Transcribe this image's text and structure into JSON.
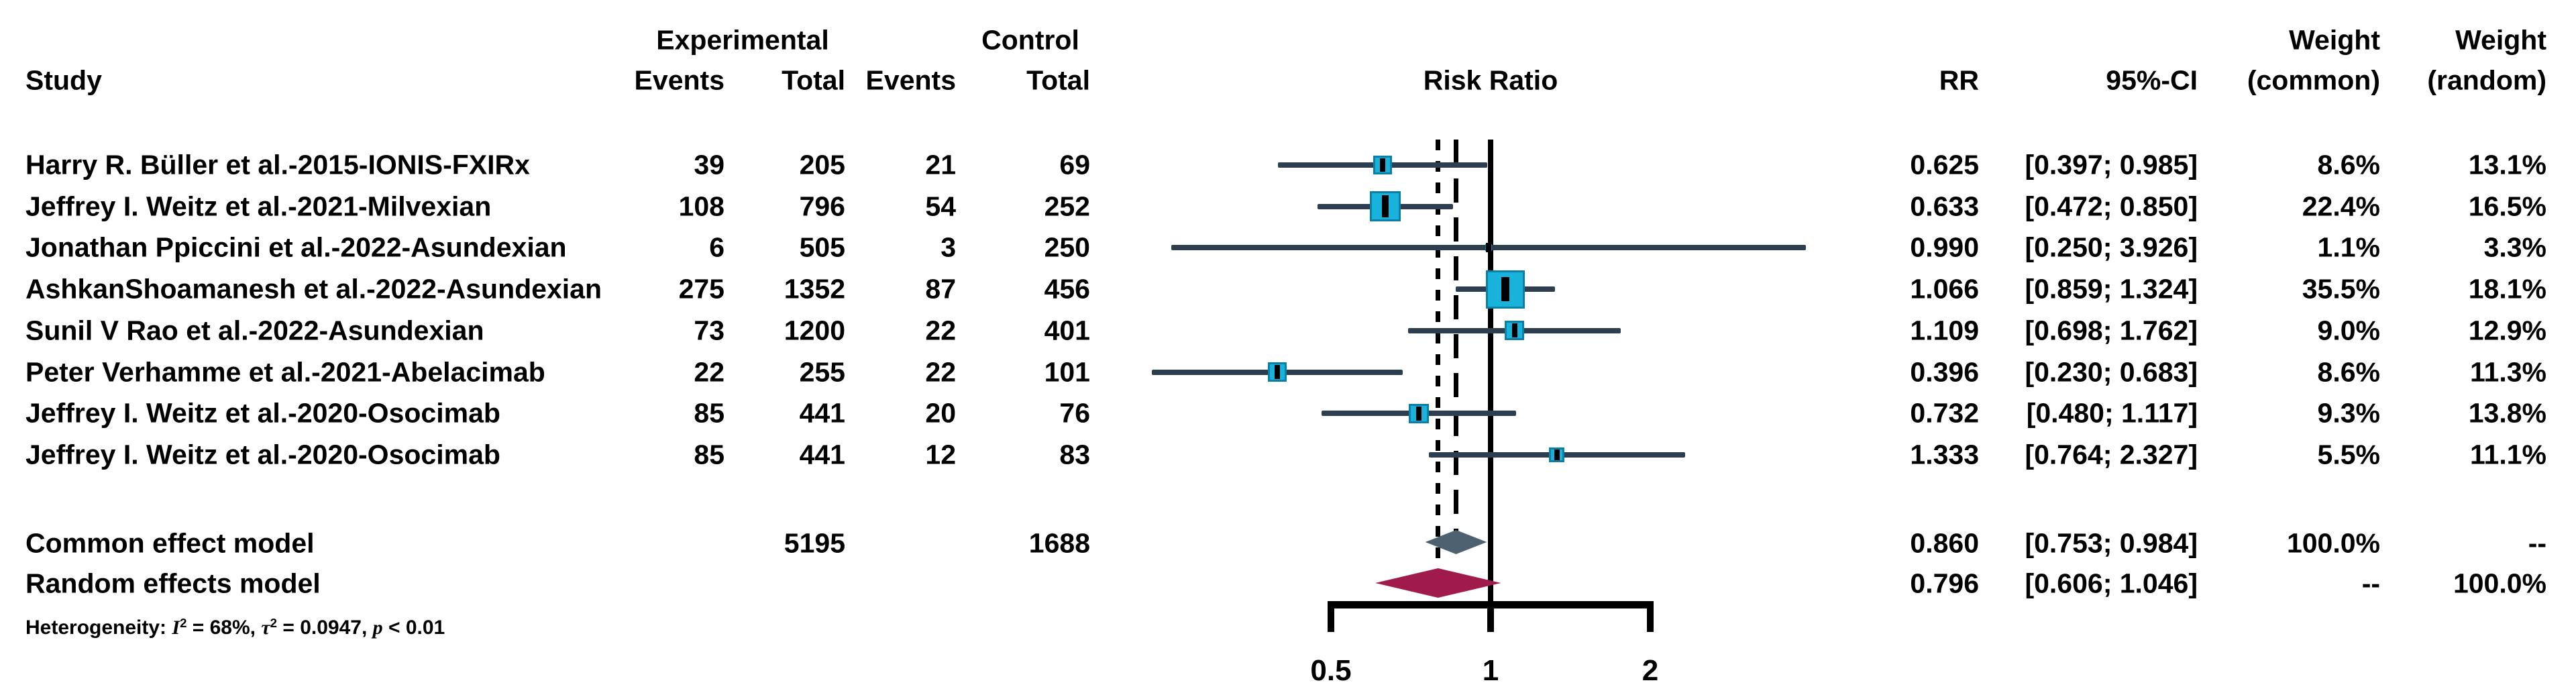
{
  "figure": {
    "columns": {
      "study": "Study",
      "experimental": "Experimental",
      "control": "Control",
      "events": "Events",
      "total": "Total",
      "risk_ratio": "Risk Ratio",
      "rr": "RR",
      "ci": "95%-CI",
      "weight_line1": "Weight",
      "weight_common_line2": "(common)",
      "weight_random_line2": "(random)"
    },
    "heterogeneity": {
      "prefix": "Heterogeneity: ",
      "i": "I",
      "sup1": "2",
      "seg1": " = 68%, ",
      "tau": "τ",
      "sup2": "2",
      "seg2": " = 0.0947, ",
      "p": "p",
      "seg3": " < 0.01"
    }
  },
  "chart_data": {
    "type": "forest",
    "x_axis": {
      "scale": "log",
      "ticks": [
        0.5,
        1,
        2
      ],
      "tick_labels": [
        "0.5",
        "1",
        "2"
      ],
      "reference_line": 1
    },
    "studies": [
      {
        "study": "Harry R. Büller et al.-2015-IONIS-FXIRx",
        "exp_events": 39,
        "exp_total": 205,
        "ctrl_events": 21,
        "ctrl_total": 69,
        "rr": 0.625,
        "ci_low": 0.397,
        "ci_high": 0.985,
        "rr_label": "0.625",
        "ci_label": "[0.397; 0.985]",
        "weight_common": "8.6%",
        "weight_random": "13.1%"
      },
      {
        "study": "Jeffrey I. Weitz et al.-2021-Milvexian",
        "exp_events": 108,
        "exp_total": 796,
        "ctrl_events": 54,
        "ctrl_total": 252,
        "rr": 0.633,
        "ci_low": 0.472,
        "ci_high": 0.85,
        "rr_label": "0.633",
        "ci_label": "[0.472; 0.850]",
        "weight_common": "22.4%",
        "weight_random": "16.5%"
      },
      {
        "study": "Jonathan Ppiccini et al.-2022-Asundexian",
        "exp_events": 6,
        "exp_total": 505,
        "ctrl_events": 3,
        "ctrl_total": 250,
        "rr": 0.99,
        "ci_low": 0.25,
        "ci_high": 3.926,
        "rr_label": "0.990",
        "ci_label": "[0.250; 3.926]",
        "weight_common": "1.1%",
        "weight_random": "3.3%"
      },
      {
        "study": "AshkanShoamanesh et al.-2022-Asundexian",
        "exp_events": 275,
        "exp_total": 1352,
        "ctrl_events": 87,
        "ctrl_total": 456,
        "rr": 1.066,
        "ci_low": 0.859,
        "ci_high": 1.324,
        "rr_label": "1.066",
        "ci_label": "[0.859; 1.324]",
        "weight_common": "35.5%",
        "weight_random": "18.1%"
      },
      {
        "study": "Sunil V Rao et al.-2022-Asundexian",
        "exp_events": 73,
        "exp_total": 1200,
        "ctrl_events": 22,
        "ctrl_total": 401,
        "rr": 1.109,
        "ci_low": 0.698,
        "ci_high": 1.762,
        "rr_label": "1.109",
        "ci_label": "[0.698; 1.762]",
        "weight_common": "9.0%",
        "weight_random": "12.9%"
      },
      {
        "study": "Peter Verhamme et al.-2021-Abelacimab",
        "exp_events": 22,
        "exp_total": 255,
        "ctrl_events": 22,
        "ctrl_total": 101,
        "rr": 0.396,
        "ci_low": 0.23,
        "ci_high": 0.683,
        "rr_label": "0.396",
        "ci_label": "[0.230; 0.683]",
        "weight_common": "8.6%",
        "weight_random": "11.3%"
      },
      {
        "study": "Jeffrey I. Weitz et al.-2020-Osocimab",
        "exp_events": 85,
        "exp_total": 441,
        "ctrl_events": 20,
        "ctrl_total": 76,
        "rr": 0.732,
        "ci_low": 0.48,
        "ci_high": 1.117,
        "rr_label": "0.732",
        "ci_label": "[0.480; 1.117]",
        "weight_common": "9.3%",
        "weight_random": "13.8%"
      },
      {
        "study": "Jeffrey I. Weitz et al.-2020-Osocimab",
        "exp_events": 85,
        "exp_total": 441,
        "ctrl_events": 12,
        "ctrl_total": 83,
        "rr": 1.333,
        "ci_low": 0.764,
        "ci_high": 2.327,
        "rr_label": "1.333",
        "ci_label": "[0.764; 2.327]",
        "weight_common": "5.5%",
        "weight_random": "11.1%"
      }
    ],
    "common_effect": {
      "label": "Common effect model",
      "exp_total": 5195,
      "ctrl_total": 1688,
      "rr": 0.86,
      "ci_low": 0.753,
      "ci_high": 0.984,
      "rr_label": "0.860",
      "ci_label": "[0.753; 0.984]",
      "weight_common": "100.0%",
      "weight_random": "--"
    },
    "random_effect": {
      "label": "Random effects model",
      "rr": 0.796,
      "ci_low": 0.606,
      "ci_high": 1.046,
      "rr_label": "0.796",
      "ci_label": "[0.606; 1.046]",
      "weight_common": "--",
      "weight_random": "100.0%"
    },
    "colors": {
      "square": "#18b2da",
      "square_border": "#0c7fa6",
      "ci_line": "#2c3e4f",
      "common_diamond": "#4d6170",
      "random_diamond": "#a01a4b",
      "line": "#000000"
    }
  }
}
